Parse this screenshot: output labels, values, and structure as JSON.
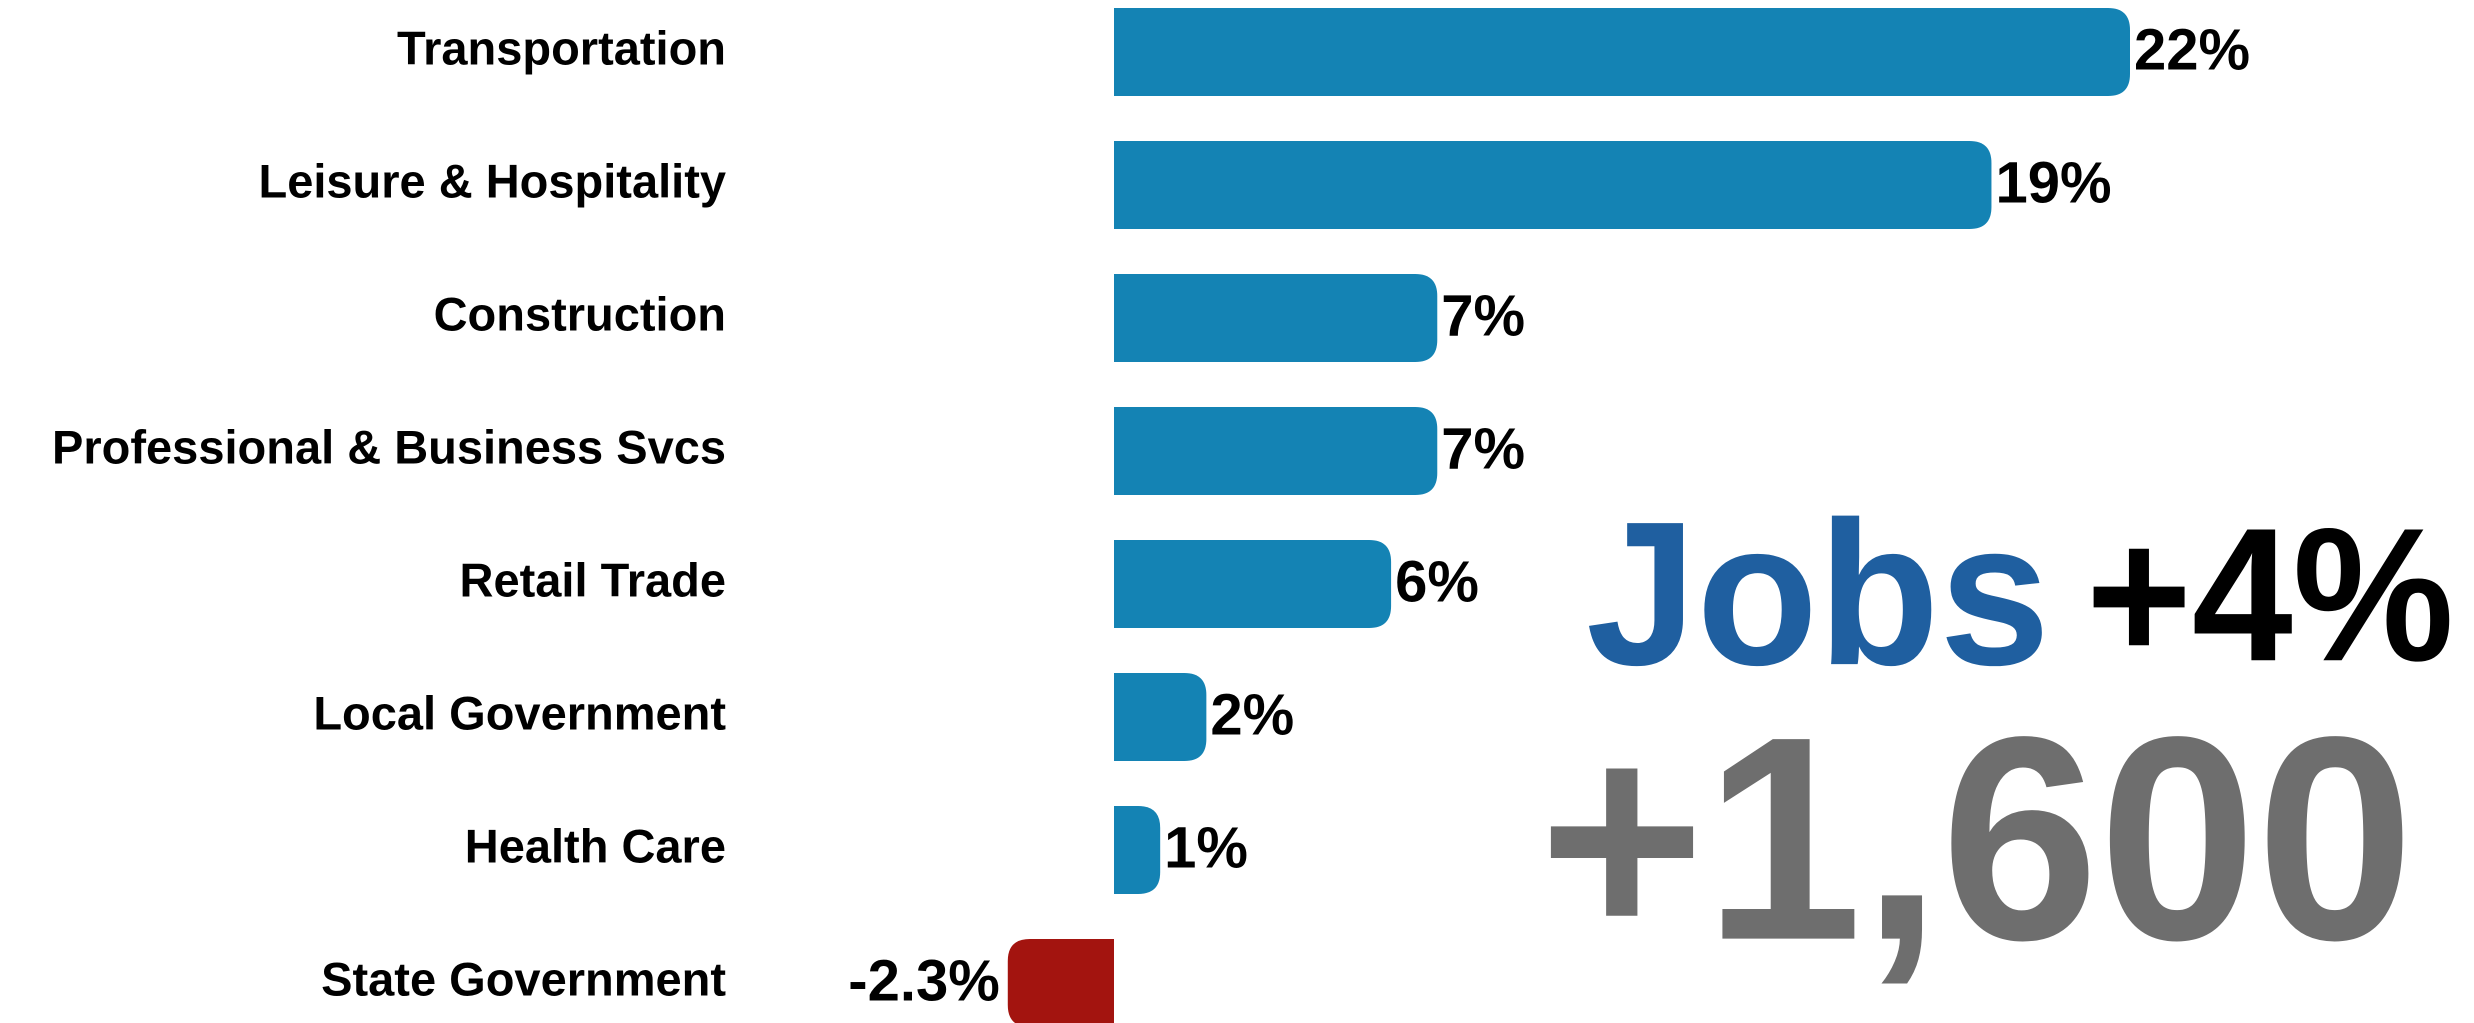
{
  "chart_data": {
    "type": "bar",
    "orientation": "horizontal",
    "categories": [
      "Transportation",
      "Leisure & Hospitality",
      "Construction",
      "Professional & Business Svcs",
      "Retail Trade",
      "Local Government",
      "Health Care",
      "State Government"
    ],
    "values": [
      22,
      19,
      7,
      7,
      6,
      2,
      1,
      -2.3
    ],
    "value_labels": [
      "22%",
      "19%",
      "7%",
      "7%",
      "6%",
      "2%",
      "1%",
      "-2.3%"
    ],
    "color": "#1483b4",
    "negative_color": "#a3140f",
    "annotations": [
      {
        "text": "Jobs",
        "color": "#1f5fa0"
      },
      {
        "text": "+4%",
        "color": "#000000"
      },
      {
        "text": "+1,600",
        "color": "#6e6e6e"
      }
    ]
  }
}
